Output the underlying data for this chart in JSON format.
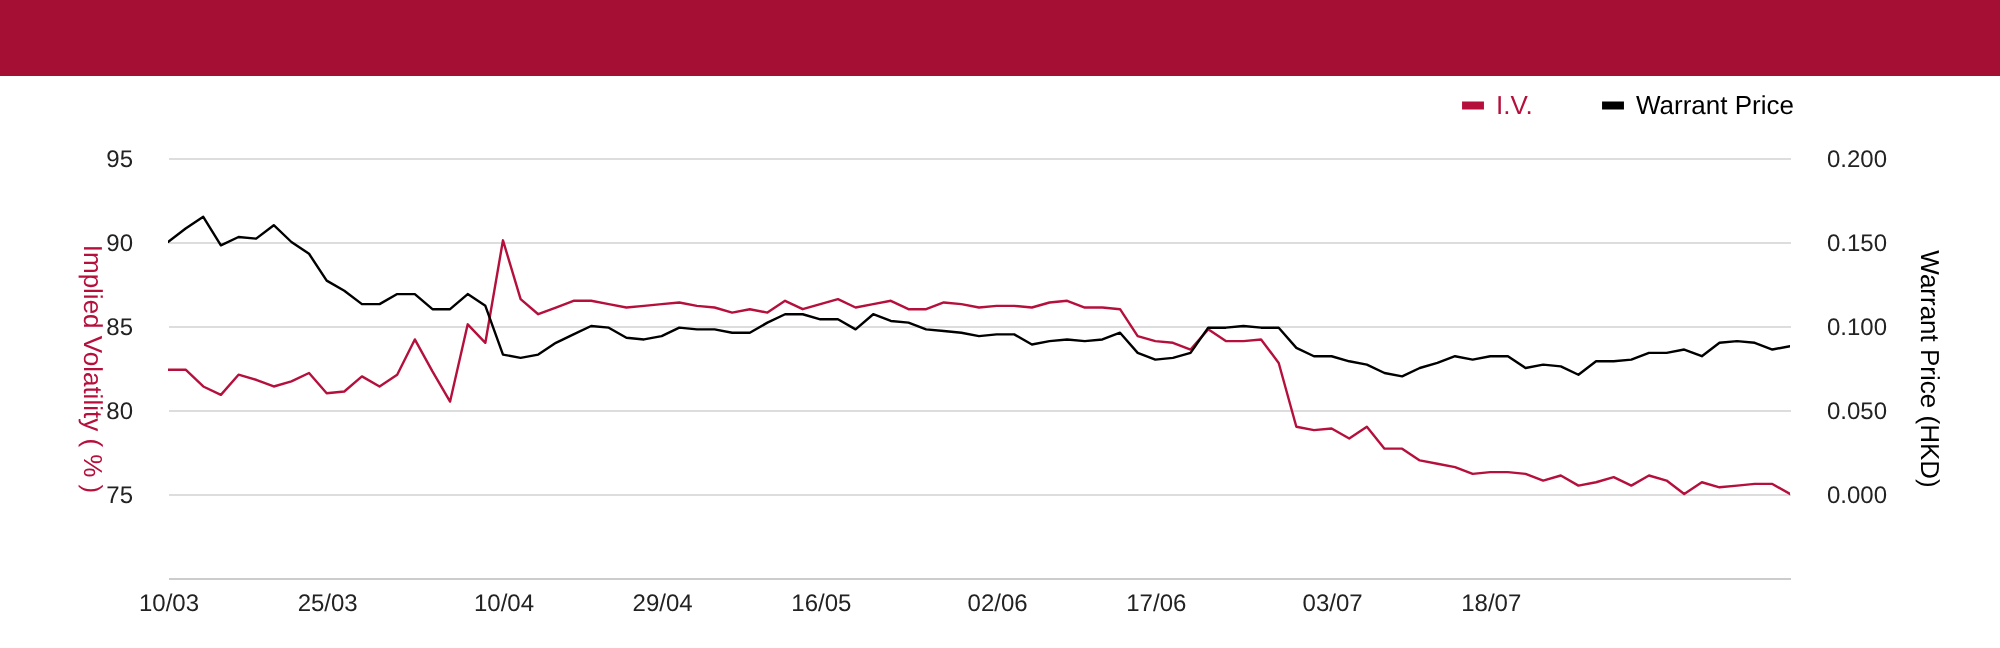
{
  "chart_data": {
    "type": "line",
    "categories": [
      "10/03",
      null,
      null,
      null,
      null,
      null,
      null,
      null,
      null,
      "25/03",
      null,
      null,
      null,
      null,
      null,
      null,
      null,
      null,
      null,
      "10/04",
      null,
      null,
      null,
      null,
      null,
      null,
      null,
      null,
      "29/04",
      null,
      null,
      null,
      null,
      null,
      null,
      null,
      null,
      "16/05",
      null,
      null,
      null,
      null,
      null,
      null,
      null,
      null,
      null,
      "02/06",
      null,
      null,
      null,
      null,
      null,
      null,
      null,
      null,
      "17/06",
      null,
      null,
      null,
      null,
      null,
      null,
      null,
      null,
      null,
      "03/07",
      null,
      null,
      null,
      null,
      null,
      null,
      null,
      null,
      "18/07",
      null,
      null,
      null,
      null,
      null,
      null,
      null,
      null,
      null,
      null,
      null,
      null,
      null,
      null,
      null,
      null,
      null
    ],
    "series": [
      {
        "name": "I.V.",
        "color": "#b5103c",
        "axis": "y",
        "values": [
          82.4,
          82.4,
          81.4,
          80.9,
          82.1,
          81.8,
          81.4,
          81.7,
          82.2,
          81.0,
          81.1,
          82.0,
          81.4,
          82.1,
          84.2,
          82.3,
          80.5,
          85.1,
          84.0,
          90.1,
          86.6,
          85.7,
          86.1,
          86.5,
          86.5,
          86.3,
          86.1,
          86.2,
          86.3,
          86.4,
          86.2,
          86.1,
          85.8,
          86.0,
          85.8,
          86.5,
          86.0,
          86.3,
          86.6,
          86.1,
          86.3,
          86.5,
          86.0,
          86.0,
          86.4,
          86.3,
          86.1,
          86.2,
          86.2,
          86.1,
          86.4,
          86.5,
          86.1,
          86.1,
          86.0,
          84.4,
          84.1,
          84.0,
          83.6,
          84.8,
          84.1,
          84.1,
          84.2,
          82.8,
          79.0,
          78.8,
          78.9,
          78.3,
          79.0,
          77.7,
          77.7,
          77.0,
          76.8,
          76.6,
          76.2,
          76.3,
          76.3,
          76.2,
          75.8,
          76.1,
          75.5,
          75.7,
          76.0,
          75.5,
          76.1,
          75.8,
          75.0,
          75.7,
          75.4,
          75.5,
          75.6,
          75.6,
          75.0
        ]
      },
      {
        "name": "Warrant Price",
        "color": "#000000",
        "axis": "y2",
        "values": [
          0.15,
          0.158,
          0.165,
          0.148,
          0.153,
          0.152,
          0.16,
          0.15,
          0.143,
          0.127,
          0.121,
          0.113,
          0.113,
          0.119,
          0.119,
          0.11,
          0.11,
          0.119,
          0.112,
          0.083,
          0.081,
          0.083,
          0.09,
          0.095,
          0.1,
          0.099,
          0.093,
          0.092,
          0.094,
          0.099,
          0.098,
          0.098,
          0.096,
          0.096,
          0.102,
          0.107,
          0.107,
          0.104,
          0.104,
          0.098,
          0.107,
          0.103,
          0.102,
          0.098,
          0.097,
          0.096,
          0.094,
          0.095,
          0.095,
          0.089,
          0.091,
          0.092,
          0.091,
          0.092,
          0.096,
          0.084,
          0.08,
          0.081,
          0.084,
          0.099,
          0.099,
          0.1,
          0.099,
          0.099,
          0.087,
          0.082,
          0.082,
          0.079,
          0.077,
          0.072,
          0.07,
          0.075,
          0.078,
          0.082,
          0.08,
          0.082,
          0.082,
          0.075,
          0.077,
          0.076,
          0.071,
          0.079,
          0.079,
          0.08,
          0.084,
          0.084,
          0.086,
          0.082,
          0.09,
          0.091,
          0.09,
          0.086,
          0.088
        ]
      }
    ],
    "ylabel": "Implied Volatility ( % )",
    "y2label": "Warrant Price (HKD)",
    "ylim": [
      70,
      95
    ],
    "yticks": [
      75,
      80,
      85,
      90,
      95
    ],
    "y2lim": [
      -0.05,
      0.2
    ],
    "y2ticks": [
      {
        "value": 0,
        "label": "0.000"
      },
      {
        "value": 0.05,
        "label": "0.050"
      },
      {
        "value": 0.1,
        "label": "0.100"
      },
      {
        "value": 0.15,
        "label": "0.150"
      },
      {
        "value": 0.2,
        "label": "0.200"
      }
    ],
    "grid": "y",
    "legend": "top right",
    "marker": "none",
    "line_style": "solid"
  }
}
